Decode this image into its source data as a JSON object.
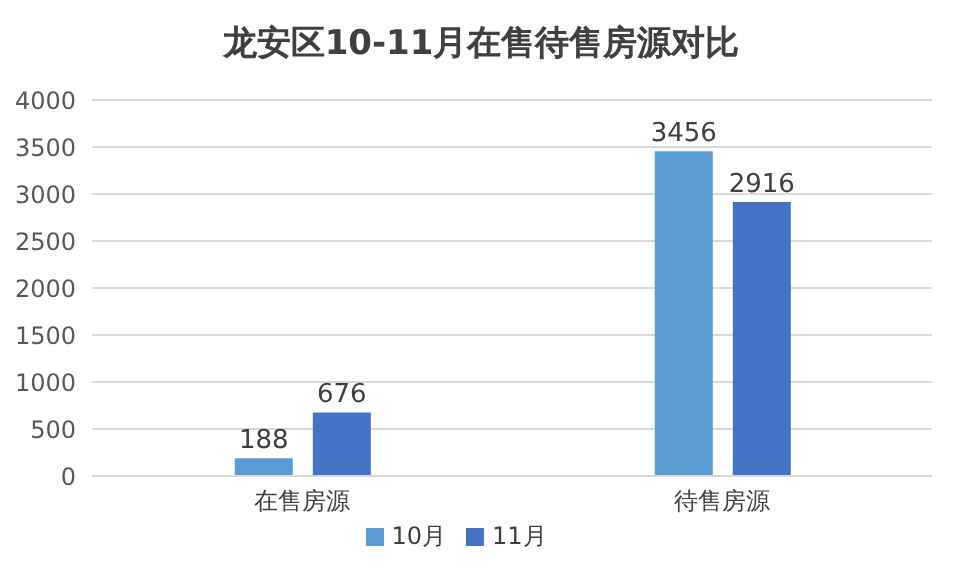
{
  "chart_data": {
    "type": "bar",
    "title": "龙安区10-11月在售待售房源对比",
    "categories": [
      "在售房源",
      "待售房源"
    ],
    "series": [
      {
        "name": "10月",
        "color": "#5b9bd5",
        "values": [
          188,
          3456
        ]
      },
      {
        "name": "11月",
        "color": "#4472c4",
        "values": [
          676,
          2916
        ]
      }
    ],
    "ylim": [
      0,
      4000
    ],
    "yticks": [
      0,
      500,
      1000,
      1500,
      2000,
      2500,
      3000,
      3500,
      4000
    ],
    "grid": "y",
    "legend": "bottom",
    "data_labels": true
  }
}
